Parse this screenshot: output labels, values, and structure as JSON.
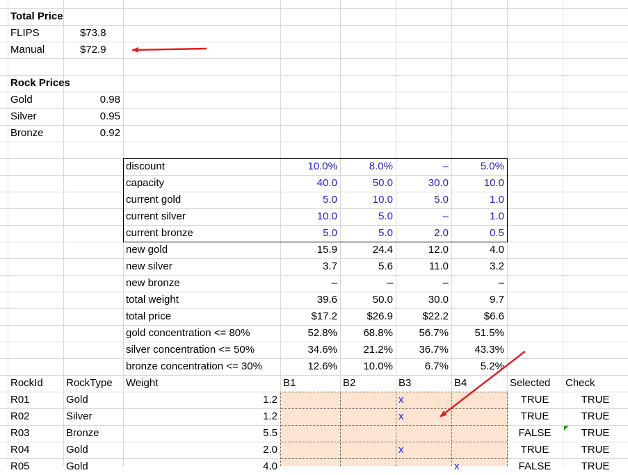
{
  "total_price": {
    "title": "Total Price",
    "rows": [
      {
        "label": "FLIPS",
        "value": "$73.8"
      },
      {
        "label": "Manual",
        "value": "$72.9"
      }
    ]
  },
  "rock_prices": {
    "title": "Rock Prices",
    "rows": [
      {
        "label": "Gold",
        "value": "0.98"
      },
      {
        "label": "Silver",
        "value": "0.95"
      },
      {
        "label": "Bronze",
        "value": "0.92"
      }
    ]
  },
  "bins": {
    "input_rows": [
      {
        "label": "discount",
        "values": [
          "10.0%",
          "8.0%",
          "–",
          "5.0%"
        ]
      },
      {
        "label": "capacity",
        "values": [
          "40.0",
          "50.0",
          "30.0",
          "10.0"
        ]
      },
      {
        "label": "current gold",
        "values": [
          "5.0",
          "10.0",
          "5.0",
          "1.0"
        ]
      },
      {
        "label": "current silver",
        "values": [
          "10.0",
          "5.0",
          "–",
          "1.0"
        ]
      },
      {
        "label": "current bronze",
        "values": [
          "5.0",
          "5.0",
          "2.0",
          "0.5"
        ]
      }
    ],
    "calc_rows": [
      {
        "label": "new gold",
        "values": [
          "15.9",
          "24.4",
          "12.0",
          "4.0"
        ]
      },
      {
        "label": "new silver",
        "values": [
          "3.7",
          "5.6",
          "11.0",
          "3.2"
        ]
      },
      {
        "label": "new bronze",
        "values": [
          "–",
          "–",
          "–",
          "–"
        ]
      },
      {
        "label": "total weight",
        "values": [
          "39.6",
          "50.0",
          "30.0",
          "9.7"
        ]
      },
      {
        "label": "total price",
        "values": [
          "$17.2",
          "$26.9",
          "$22.2",
          "$6.6"
        ]
      },
      {
        "label": "gold concentration <= 80%",
        "values": [
          "52.8%",
          "68.8%",
          "56.7%",
          "51.5%"
        ]
      },
      {
        "label": "silver concentration <= 50%",
        "values": [
          "34.6%",
          "21.2%",
          "36.7%",
          "43.3%"
        ]
      },
      {
        "label": "bronze concentration <= 30%",
        "values": [
          "12.6%",
          "10.0%",
          "6.7%",
          "5.2%"
        ]
      }
    ]
  },
  "rocks": {
    "headers": [
      "RockId",
      "RockType",
      "Weight",
      "B1",
      "B2",
      "B3",
      "B4",
      "Selected",
      "Check"
    ],
    "rows": [
      {
        "id": "R01",
        "type": "Gold",
        "weight": "1.2",
        "b1": "",
        "b2": "",
        "b3": "x",
        "b4": "",
        "selected": "TRUE",
        "check": "TRUE"
      },
      {
        "id": "R02",
        "type": "Silver",
        "weight": "1.2",
        "b1": "",
        "b2": "",
        "b3": "x",
        "b4": "",
        "selected": "TRUE",
        "check": "TRUE"
      },
      {
        "id": "R03",
        "type": "Bronze",
        "weight": "5.5",
        "b1": "",
        "b2": "",
        "b3": "",
        "b4": "",
        "selected": "FALSE",
        "check": "TRUE"
      },
      {
        "id": "R04",
        "type": "Gold",
        "weight": "2.0",
        "b1": "",
        "b2": "",
        "b3": "x",
        "b4": "",
        "selected": "TRUE",
        "check": "TRUE"
      },
      {
        "id": "R05",
        "type": "Gold",
        "weight": "4.0",
        "b1": "",
        "b2": "",
        "b3": "",
        "b4": "x",
        "selected": "FALSE",
        "check": "TRUE"
      }
    ]
  },
  "colors": {
    "input_blue": "#1f1fd6",
    "selection_fill": "#fce4d0",
    "arrow_red": "#e02020",
    "gridline": "#d9d9d9"
  }
}
